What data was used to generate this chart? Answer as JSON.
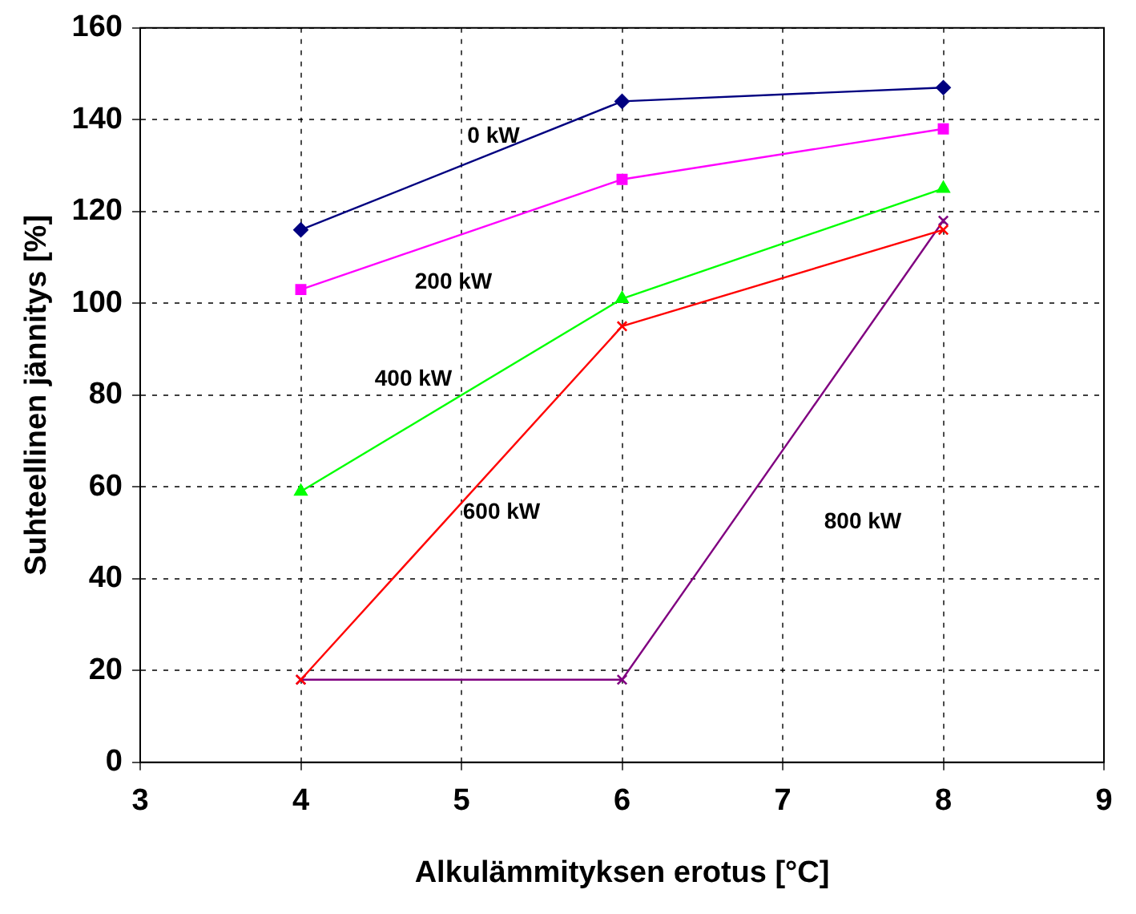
{
  "chart_data": {
    "type": "line",
    "xlabel": "Alkulämmityksen erotus [°C]",
    "ylabel": "Suhteellinen jännitys [%]",
    "x": [
      4,
      6,
      8
    ],
    "series": [
      {
        "name": "0 kW",
        "color": "#000080",
        "marker": "diamond",
        "values": [
          116,
          144,
          147
        ]
      },
      {
        "name": "200 kW",
        "color": "#ff00ff",
        "marker": "square",
        "values": [
          103,
          127,
          138
        ]
      },
      {
        "name": "400 kW",
        "color": "#00ff00",
        "marker": "triangle",
        "values": [
          59,
          101,
          125
        ]
      },
      {
        "name": "600 kW",
        "color": "#ff0000",
        "marker": "cross",
        "values": [
          18,
          95,
          116
        ]
      },
      {
        "name": "800 kW",
        "color": "#800080",
        "marker": "cross",
        "values": [
          18,
          18,
          118
        ]
      }
    ],
    "xlim": [
      3,
      9
    ],
    "xticks": [
      3,
      4,
      5,
      6,
      7,
      8,
      9
    ],
    "ylim": [
      0,
      160
    ],
    "yticks": [
      0,
      20,
      40,
      60,
      80,
      100,
      120,
      140,
      160
    ],
    "grid": true,
    "legend": false,
    "line_style": "solid"
  }
}
